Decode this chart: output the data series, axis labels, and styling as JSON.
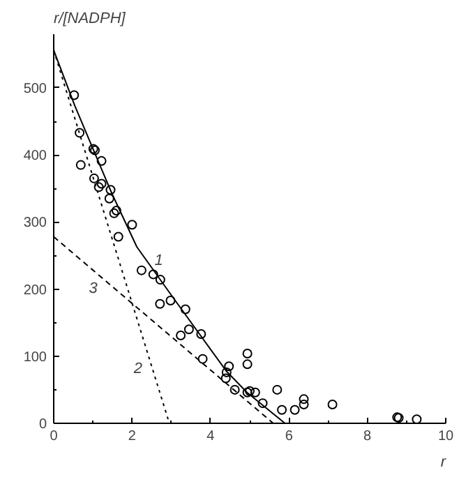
{
  "chart_data": {
    "type": "scatter",
    "xlabel": "r",
    "ylabel": "r/[NADPH]",
    "xlim": [
      0,
      10
    ],
    "ylim": [
      0,
      580
    ],
    "xticks": [
      0,
      2,
      4,
      6,
      8,
      10
    ],
    "yticks": [
      0,
      100,
      200,
      300,
      400,
      500
    ],
    "grid": false,
    "series": [
      {
        "color": "#000000",
        "marker": "circle",
        "x": [
          0.52,
          0.66,
          1.01,
          1.05,
          1.22,
          0.69,
          1.03,
          1.15,
          1.22,
          1.45,
          1.42,
          1.54,
          1.6,
          2.0,
          1.65,
          2.24,
          2.54,
          2.72,
          2.98,
          2.71,
          3.36,
          3.24,
          3.45,
          3.76,
          3.8,
          4.41,
          4.47,
          4.39,
          4.62,
          4.94,
          4.94,
          4.94,
          5.0,
          5.14,
          5.33,
          5.7,
          5.82,
          6.15,
          6.38,
          6.38,
          7.11,
          8.76,
          8.8,
          9.26
        ],
        "values": [
          489,
          433,
          409,
          407,
          391,
          385,
          365,
          352,
          357,
          348,
          335,
          313,
          317,
          296,
          278,
          228,
          222,
          214,
          183,
          178,
          170,
          131,
          140,
          133,
          96,
          76,
          85,
          67,
          50,
          46,
          104,
          88,
          48,
          46,
          30,
          50,
          20,
          20,
          28,
          36,
          28,
          9,
          8,
          6
        ]
      },
      {
        "type": "line",
        "color": "#000000",
        "line_style": "solid",
        "x": [
          0,
          0.54,
          1.48,
          2.12,
          3.0,
          4.4,
          4.93,
          5.9
        ],
        "values": [
          556,
          473,
          343,
          263,
          191,
          78,
          46,
          0
        ]
      },
      {
        "type": "line",
        "color": "#000000",
        "line_style": "dotted",
        "x": [
          0,
          2.95
        ],
        "values": [
          556,
          0
        ]
      },
      {
        "type": "line",
        "color": "#000000",
        "line_style": "dashed",
        "x": [
          0,
          5.6
        ],
        "values": [
          278,
          0
        ]
      }
    ],
    "annotations": [
      "1",
      "2",
      "3"
    ]
  }
}
